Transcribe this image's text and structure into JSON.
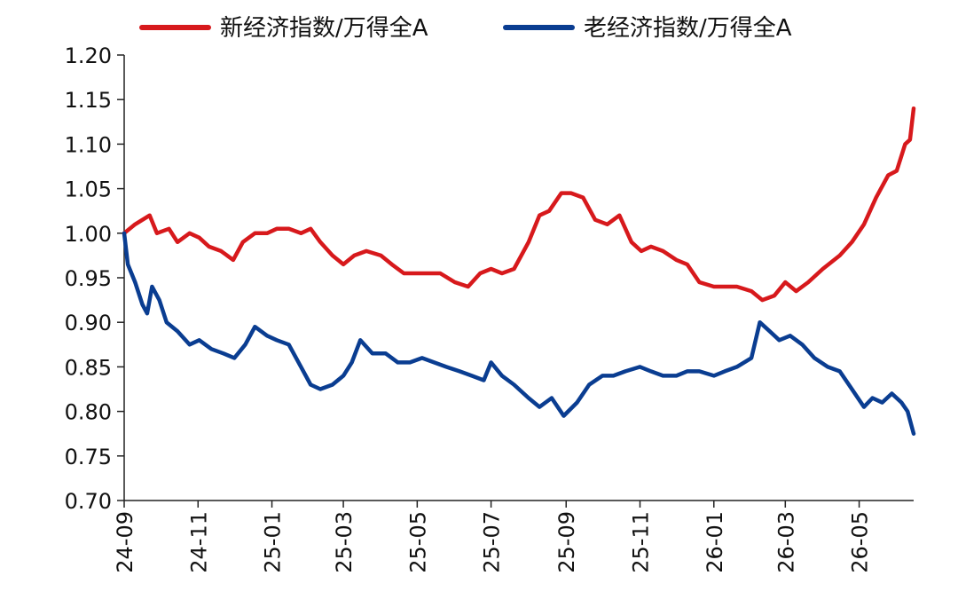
{
  "chart_data": {
    "type": "line",
    "title": "",
    "xlabel": "",
    "ylabel": "",
    "ylim": [
      0.7,
      1.2
    ],
    "yticks": [
      "1.20",
      "1.15",
      "1.10",
      "1.05",
      "1.00",
      "0.95",
      "0.90",
      "0.85",
      "0.80",
      "0.75",
      "0.70"
    ],
    "xticks": [
      "24-09",
      "24-11",
      "25-01",
      "25-03",
      "25-05",
      "25-07",
      "25-09",
      "25-11",
      "26-01",
      "26-03",
      "26-05"
    ],
    "grid": false,
    "legend_position": "top",
    "series": [
      {
        "name": "新经济指数/万得全A",
        "color": "#d7191c",
        "points": [
          [
            "24-09-01",
            1.0
          ],
          [
            "24-09-10",
            1.01
          ],
          [
            "24-09-22",
            1.02
          ],
          [
            "24-09-28",
            1.0
          ],
          [
            "24-10-08",
            1.005
          ],
          [
            "24-10-15",
            0.99
          ],
          [
            "24-10-25",
            1.0
          ],
          [
            "24-11-02",
            0.995
          ],
          [
            "24-11-10",
            0.985
          ],
          [
            "24-11-20",
            0.98
          ],
          [
            "24-11-30",
            0.97
          ],
          [
            "24-12-08",
            0.99
          ],
          [
            "24-12-18",
            1.0
          ],
          [
            "24-12-28",
            1.0
          ],
          [
            "25-01-05",
            1.005
          ],
          [
            "25-01-15",
            1.005
          ],
          [
            "25-01-25",
            1.0
          ],
          [
            "25-02-02",
            1.005
          ],
          [
            "25-02-10",
            0.99
          ],
          [
            "25-02-20",
            0.975
          ],
          [
            "25-03-01",
            0.965
          ],
          [
            "25-03-10",
            0.975
          ],
          [
            "25-03-20",
            0.98
          ],
          [
            "25-04-01",
            0.975
          ],
          [
            "25-04-10",
            0.965
          ],
          [
            "25-04-20",
            0.955
          ],
          [
            "25-05-01",
            0.955
          ],
          [
            "25-05-10",
            0.955
          ],
          [
            "25-05-20",
            0.955
          ],
          [
            "25-06-01",
            0.945
          ],
          [
            "25-06-12",
            0.94
          ],
          [
            "25-06-22",
            0.955
          ],
          [
            "25-07-01",
            0.96
          ],
          [
            "25-07-10",
            0.955
          ],
          [
            "25-07-20",
            0.96
          ],
          [
            "25-08-01",
            0.99
          ],
          [
            "25-08-10",
            1.02
          ],
          [
            "25-08-18",
            1.025
          ],
          [
            "25-08-28",
            1.045
          ],
          [
            "25-09-05",
            1.045
          ],
          [
            "25-09-15",
            1.04
          ],
          [
            "25-09-25",
            1.015
          ],
          [
            "25-10-05",
            1.01
          ],
          [
            "25-10-15",
            1.02
          ],
          [
            "25-10-25",
            0.99
          ],
          [
            "25-11-02",
            0.98
          ],
          [
            "25-11-10",
            0.985
          ],
          [
            "25-11-20",
            0.98
          ],
          [
            "25-12-01",
            0.97
          ],
          [
            "25-12-10",
            0.965
          ],
          [
            "25-12-20",
            0.945
          ],
          [
            "26-01-01",
            0.94
          ],
          [
            "26-01-10",
            0.94
          ],
          [
            "26-01-20",
            0.94
          ],
          [
            "26-02-01",
            0.935
          ],
          [
            "26-02-10",
            0.925
          ],
          [
            "26-02-20",
            0.93
          ],
          [
            "26-03-01",
            0.945
          ],
          [
            "26-03-10",
            0.935
          ],
          [
            "26-03-20",
            0.945
          ],
          [
            "26-04-01",
            0.96
          ],
          [
            "26-04-15",
            0.975
          ],
          [
            "26-04-25",
            0.99
          ],
          [
            "26-05-05",
            1.01
          ],
          [
            "26-05-15",
            1.04
          ],
          [
            "26-05-25",
            1.065
          ],
          [
            "26-06-01",
            1.07
          ],
          [
            "26-06-08",
            1.1
          ],
          [
            "26-06-12",
            1.105
          ],
          [
            "26-06-15",
            1.14
          ]
        ]
      },
      {
        "name": "老经济指数/万得全A",
        "color": "#0a3d91",
        "points": [
          [
            "24-09-01",
            1.0
          ],
          [
            "24-09-04",
            0.965
          ],
          [
            "24-09-10",
            0.945
          ],
          [
            "24-09-16",
            0.92
          ],
          [
            "24-09-20",
            0.91
          ],
          [
            "24-09-24",
            0.94
          ],
          [
            "24-09-30",
            0.925
          ],
          [
            "24-10-06",
            0.9
          ],
          [
            "24-10-15",
            0.89
          ],
          [
            "24-10-25",
            0.875
          ],
          [
            "24-11-02",
            0.88
          ],
          [
            "24-11-12",
            0.87
          ],
          [
            "24-11-22",
            0.865
          ],
          [
            "24-12-01",
            0.86
          ],
          [
            "24-12-10",
            0.875
          ],
          [
            "24-12-18",
            0.895
          ],
          [
            "24-12-28",
            0.885
          ],
          [
            "25-01-05",
            0.88
          ],
          [
            "25-01-15",
            0.875
          ],
          [
            "25-01-25",
            0.85
          ],
          [
            "25-02-02",
            0.83
          ],
          [
            "25-02-10",
            0.825
          ],
          [
            "25-02-20",
            0.83
          ],
          [
            "25-03-01",
            0.84
          ],
          [
            "25-03-08",
            0.855
          ],
          [
            "25-03-15",
            0.88
          ],
          [
            "25-03-25",
            0.865
          ],
          [
            "25-04-05",
            0.865
          ],
          [
            "25-04-15",
            0.855
          ],
          [
            "25-04-25",
            0.855
          ],
          [
            "25-05-05",
            0.86
          ],
          [
            "25-05-15",
            0.855
          ],
          [
            "25-05-25",
            0.85
          ],
          [
            "25-06-05",
            0.845
          ],
          [
            "25-06-15",
            0.84
          ],
          [
            "25-06-25",
            0.835
          ],
          [
            "25-07-01",
            0.855
          ],
          [
            "25-07-10",
            0.84
          ],
          [
            "25-07-20",
            0.83
          ],
          [
            "25-08-01",
            0.815
          ],
          [
            "25-08-10",
            0.805
          ],
          [
            "25-08-20",
            0.815
          ],
          [
            "25-08-30",
            0.795
          ],
          [
            "25-09-10",
            0.81
          ],
          [
            "25-09-20",
            0.83
          ],
          [
            "25-10-01",
            0.84
          ],
          [
            "25-10-10",
            0.84
          ],
          [
            "25-10-20",
            0.845
          ],
          [
            "25-11-01",
            0.85
          ],
          [
            "25-11-10",
            0.845
          ],
          [
            "25-11-20",
            0.84
          ],
          [
            "25-12-01",
            0.84
          ],
          [
            "25-12-10",
            0.845
          ],
          [
            "25-12-20",
            0.845
          ],
          [
            "26-01-01",
            0.84
          ],
          [
            "26-01-10",
            0.845
          ],
          [
            "26-01-20",
            0.85
          ],
          [
            "26-02-01",
            0.86
          ],
          [
            "26-02-08",
            0.9
          ],
          [
            "26-02-16",
            0.89
          ],
          [
            "26-02-24",
            0.88
          ],
          [
            "26-03-05",
            0.885
          ],
          [
            "26-03-15",
            0.875
          ],
          [
            "26-03-25",
            0.86
          ],
          [
            "26-04-05",
            0.85
          ],
          [
            "26-04-15",
            0.845
          ],
          [
            "26-04-25",
            0.825
          ],
          [
            "26-05-05",
            0.805
          ],
          [
            "26-05-12",
            0.815
          ],
          [
            "26-05-20",
            0.81
          ],
          [
            "26-05-28",
            0.82
          ],
          [
            "26-06-05",
            0.81
          ],
          [
            "26-06-10",
            0.8
          ],
          [
            "26-06-15",
            0.775
          ]
        ]
      }
    ]
  }
}
